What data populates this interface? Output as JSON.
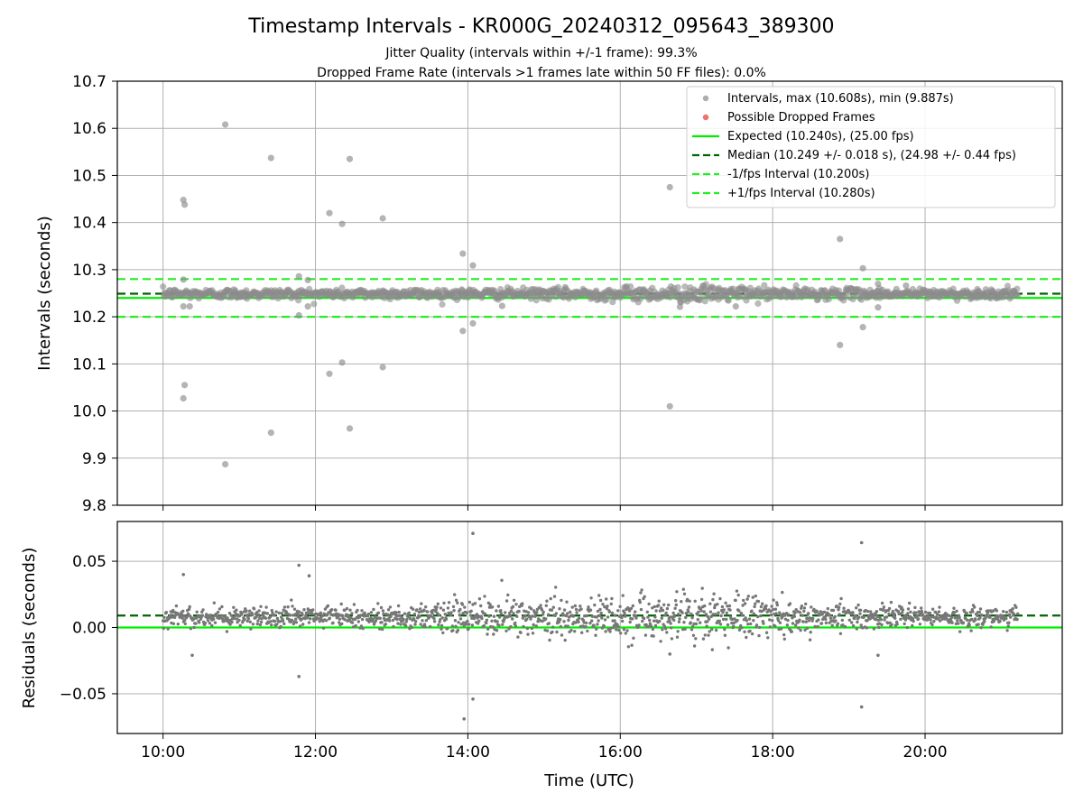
{
  "chart_data": [
    {
      "type": "scatter",
      "title": "Timestamp Intervals - KR000G_20240312_095643_389300",
      "subtitle_lines": [
        "Jitter Quality (intervals within +/-1 frame): 99.3%",
        "Dropped Frame Rate (intervals >1 frames late within 50 FF files): 0.0%"
      ],
      "ylabel": "Intervals (seconds)",
      "ylim": [
        9.8,
        10.7
      ],
      "yticks": [
        "9.8",
        "9.9",
        "10.0",
        "10.1",
        "10.2",
        "10.3",
        "10.4",
        "10.5",
        "10.6",
        "10.7"
      ],
      "xlim_hours": [
        9.4,
        21.8
      ],
      "xticks": [
        "10:00",
        "12:00",
        "14:00",
        "16:00",
        "18:00",
        "20:00"
      ],
      "grid": true,
      "legend_position": "top-right",
      "series": [
        {
          "name": "Intervals, max (10.608s), min (9.887s)",
          "kind": "scatter",
          "color": "#999999"
        },
        {
          "name": "Possible Dropped Frames",
          "kind": "scatter",
          "color": "#f07070"
        },
        {
          "name": "Expected (10.240s), (25.00 fps)",
          "kind": "hline",
          "y": 10.24,
          "color": "#00ee00",
          "style": "solid"
        },
        {
          "name": "Median (10.249 +/- 0.018 s), (24.98 +/- 0.44 fps)",
          "kind": "hline",
          "y": 10.249,
          "color": "#006400",
          "style": "dashed"
        },
        {
          "name": "-1/fps Interval (10.200s)",
          "kind": "hline",
          "y": 10.2,
          "color": "#22ee22",
          "style": "dashed"
        },
        {
          "name": "+1/fps Interval (10.280s)",
          "kind": "hline",
          "y": 10.28,
          "color": "#22ee22",
          "style": "dashed"
        }
      ],
      "x_start_time": "10:00",
      "x_end_time": "21:13",
      "main_band": {
        "center": 10.249,
        "spread": 0.012
      },
      "outliers": [
        {
          "x": "10:49",
          "y": 10.608
        },
        {
          "x": "10:49",
          "y": 9.887
        },
        {
          "x": "10:16",
          "y": 10.448
        },
        {
          "x": "10:17",
          "y": 10.438
        },
        {
          "x": "10:17",
          "y": 10.055
        },
        {
          "x": "10:16",
          "y": 10.027
        },
        {
          "x": "10:16",
          "y": 10.222
        },
        {
          "x": "10:16",
          "y": 10.279
        },
        {
          "x": "10:21",
          "y": 10.222
        },
        {
          "x": "11:25",
          "y": 10.537
        },
        {
          "x": "11:25",
          "y": 9.954
        },
        {
          "x": "11:47",
          "y": 10.286
        },
        {
          "x": "11:47",
          "y": 10.203
        },
        {
          "x": "11:54",
          "y": 10.278
        },
        {
          "x": "11:54",
          "y": 10.222
        },
        {
          "x": "12:11",
          "y": 10.42
        },
        {
          "x": "12:11",
          "y": 10.079
        },
        {
          "x": "12:21",
          "y": 10.397
        },
        {
          "x": "12:21",
          "y": 10.103
        },
        {
          "x": "12:27",
          "y": 10.535
        },
        {
          "x": "12:27",
          "y": 9.963
        },
        {
          "x": "12:53",
          "y": 10.409
        },
        {
          "x": "12:53",
          "y": 10.093
        },
        {
          "x": "13:56",
          "y": 10.334
        },
        {
          "x": "13:56",
          "y": 10.17
        },
        {
          "x": "14:04",
          "y": 10.309
        },
        {
          "x": "14:04",
          "y": 10.186
        },
        {
          "x": "14:27",
          "y": 10.223
        },
        {
          "x": "16:39",
          "y": 10.475
        },
        {
          "x": "16:39",
          "y": 10.01
        },
        {
          "x": "16:47",
          "y": 10.221
        },
        {
          "x": "17:31",
          "y": 10.222
        },
        {
          "x": "18:53",
          "y": 10.365
        },
        {
          "x": "18:53",
          "y": 10.14
        },
        {
          "x": "19:11",
          "y": 10.303
        },
        {
          "x": "19:11",
          "y": 10.178
        },
        {
          "x": "19:23",
          "y": 10.27
        },
        {
          "x": "19:23",
          "y": 10.22
        },
        {
          "x": "19:45",
          "y": 10.266
        }
      ]
    },
    {
      "type": "scatter",
      "xlabel": "Time (UTC)",
      "ylabel": "Residuals (seconds)",
      "ylim": [
        -0.08,
        0.08
      ],
      "yticks": [
        "−0.05",
        "0.00",
        "0.05"
      ],
      "ytick_values": [
        -0.05,
        0.0,
        0.05
      ],
      "xlim_hours": [
        9.4,
        21.8
      ],
      "xticks": [
        "10:00",
        "12:00",
        "14:00",
        "16:00",
        "18:00",
        "20:00"
      ],
      "grid": true,
      "series": [
        {
          "name": "Residuals",
          "kind": "scatter",
          "color": "#777777"
        },
        {
          "name": "Expected",
          "kind": "hline",
          "y": 0.0,
          "color": "#00ee00",
          "style": "solid"
        },
        {
          "name": "Median",
          "kind": "hline",
          "y": 0.009,
          "color": "#006400",
          "style": "dashed"
        }
      ],
      "main_band": {
        "center": 0.009,
        "spread": 0.006
      },
      "outliers": [
        {
          "x": "14:04",
          "y": 0.071
        },
        {
          "x": "19:10",
          "y": 0.064
        },
        {
          "x": "11:47",
          "y": 0.047
        },
        {
          "x": "11:55",
          "y": 0.039
        },
        {
          "x": "10:16",
          "y": 0.04
        },
        {
          "x": "14:04",
          "y": -0.054
        },
        {
          "x": "13:57",
          "y": -0.069
        },
        {
          "x": "19:10",
          "y": -0.06
        },
        {
          "x": "11:47",
          "y": -0.037
        },
        {
          "x": "19:23",
          "y": -0.021
        },
        {
          "x": "10:23",
          "y": -0.021
        },
        {
          "x": "16:39",
          "y": -0.02
        }
      ]
    }
  ]
}
